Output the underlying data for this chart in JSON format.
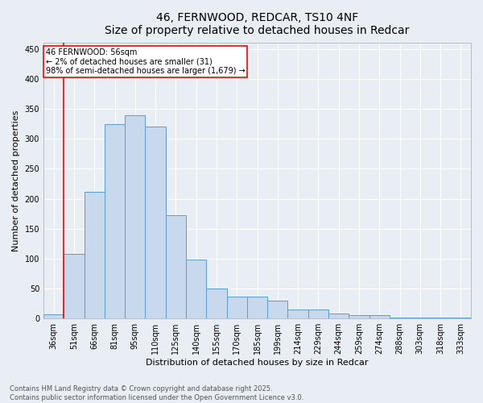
{
  "title_line1": "46, FERNWOOD, REDCAR, TS10 4NF",
  "title_line2": "Size of property relative to detached houses in Redcar",
  "xlabel": "Distribution of detached houses by size in Redcar",
  "ylabel": "Number of detached properties",
  "categories": [
    "36sqm",
    "51sqm",
    "66sqm",
    "81sqm",
    "95sqm",
    "110sqm",
    "125sqm",
    "140sqm",
    "155sqm",
    "170sqm",
    "185sqm",
    "199sqm",
    "214sqm",
    "229sqm",
    "244sqm",
    "259sqm",
    "274sqm",
    "288sqm",
    "303sqm",
    "318sqm",
    "333sqm"
  ],
  "values": [
    7,
    108,
    212,
    325,
    340,
    320,
    172,
    98,
    50,
    36,
    36,
    30,
    15,
    15,
    9,
    5,
    5,
    2,
    1,
    1,
    1
  ],
  "bar_color": "#c9d9ed",
  "bar_edge_color": "#5b9bd5",
  "annotation_box_text": "46 FERNWOOD: 56sqm\n← 2% of detached houses are smaller (31)\n98% of semi-detached houses are larger (1,679) →",
  "vline_color": "red",
  "box_edge_color": "red",
  "footer_line1": "Contains HM Land Registry data © Crown copyright and database right 2025.",
  "footer_line2": "Contains public sector information licensed under the Open Government Licence v3.0.",
  "ylim": [
    0,
    460
  ],
  "yticks": [
    0,
    50,
    100,
    150,
    200,
    250,
    300,
    350,
    400,
    450
  ],
  "background_color": "#e8eef4",
  "grid_color": "#ffffff",
  "title_fontsize": 10,
  "axis_label_fontsize": 8,
  "tick_fontsize": 7,
  "annotation_fontsize": 7,
  "footer_fontsize": 6
}
